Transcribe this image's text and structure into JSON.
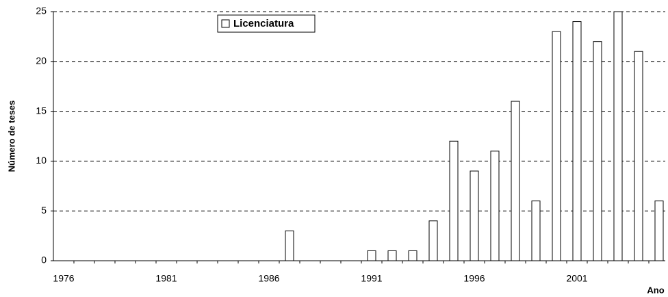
{
  "chart_data": {
    "type": "bar",
    "y_label": "Número de teses",
    "x_label": "Ano",
    "categories": [
      "1976",
      null,
      null,
      null,
      null,
      "1981",
      null,
      null,
      null,
      null,
      "1986",
      null,
      null,
      null,
      null,
      "1991",
      null,
      null,
      null,
      null,
      "1996",
      null,
      null,
      null,
      null,
      "2001",
      null,
      null,
      null,
      null
    ],
    "series": [
      {
        "name": "Licenciatura",
        "color": "#ffffff",
        "values": [
          0,
          0,
          0,
          0,
          0,
          0,
          0,
          0,
          0,
          0,
          0,
          3,
          0,
          0,
          0,
          1,
          1,
          1,
          4,
          12,
          9,
          11,
          16,
          6,
          23,
          24,
          22,
          25,
          21,
          6
        ]
      }
    ],
    "ylim": [
      0,
      25
    ],
    "yticks": [
      0,
      5,
      10,
      15,
      20,
      25
    ],
    "grid": true
  }
}
